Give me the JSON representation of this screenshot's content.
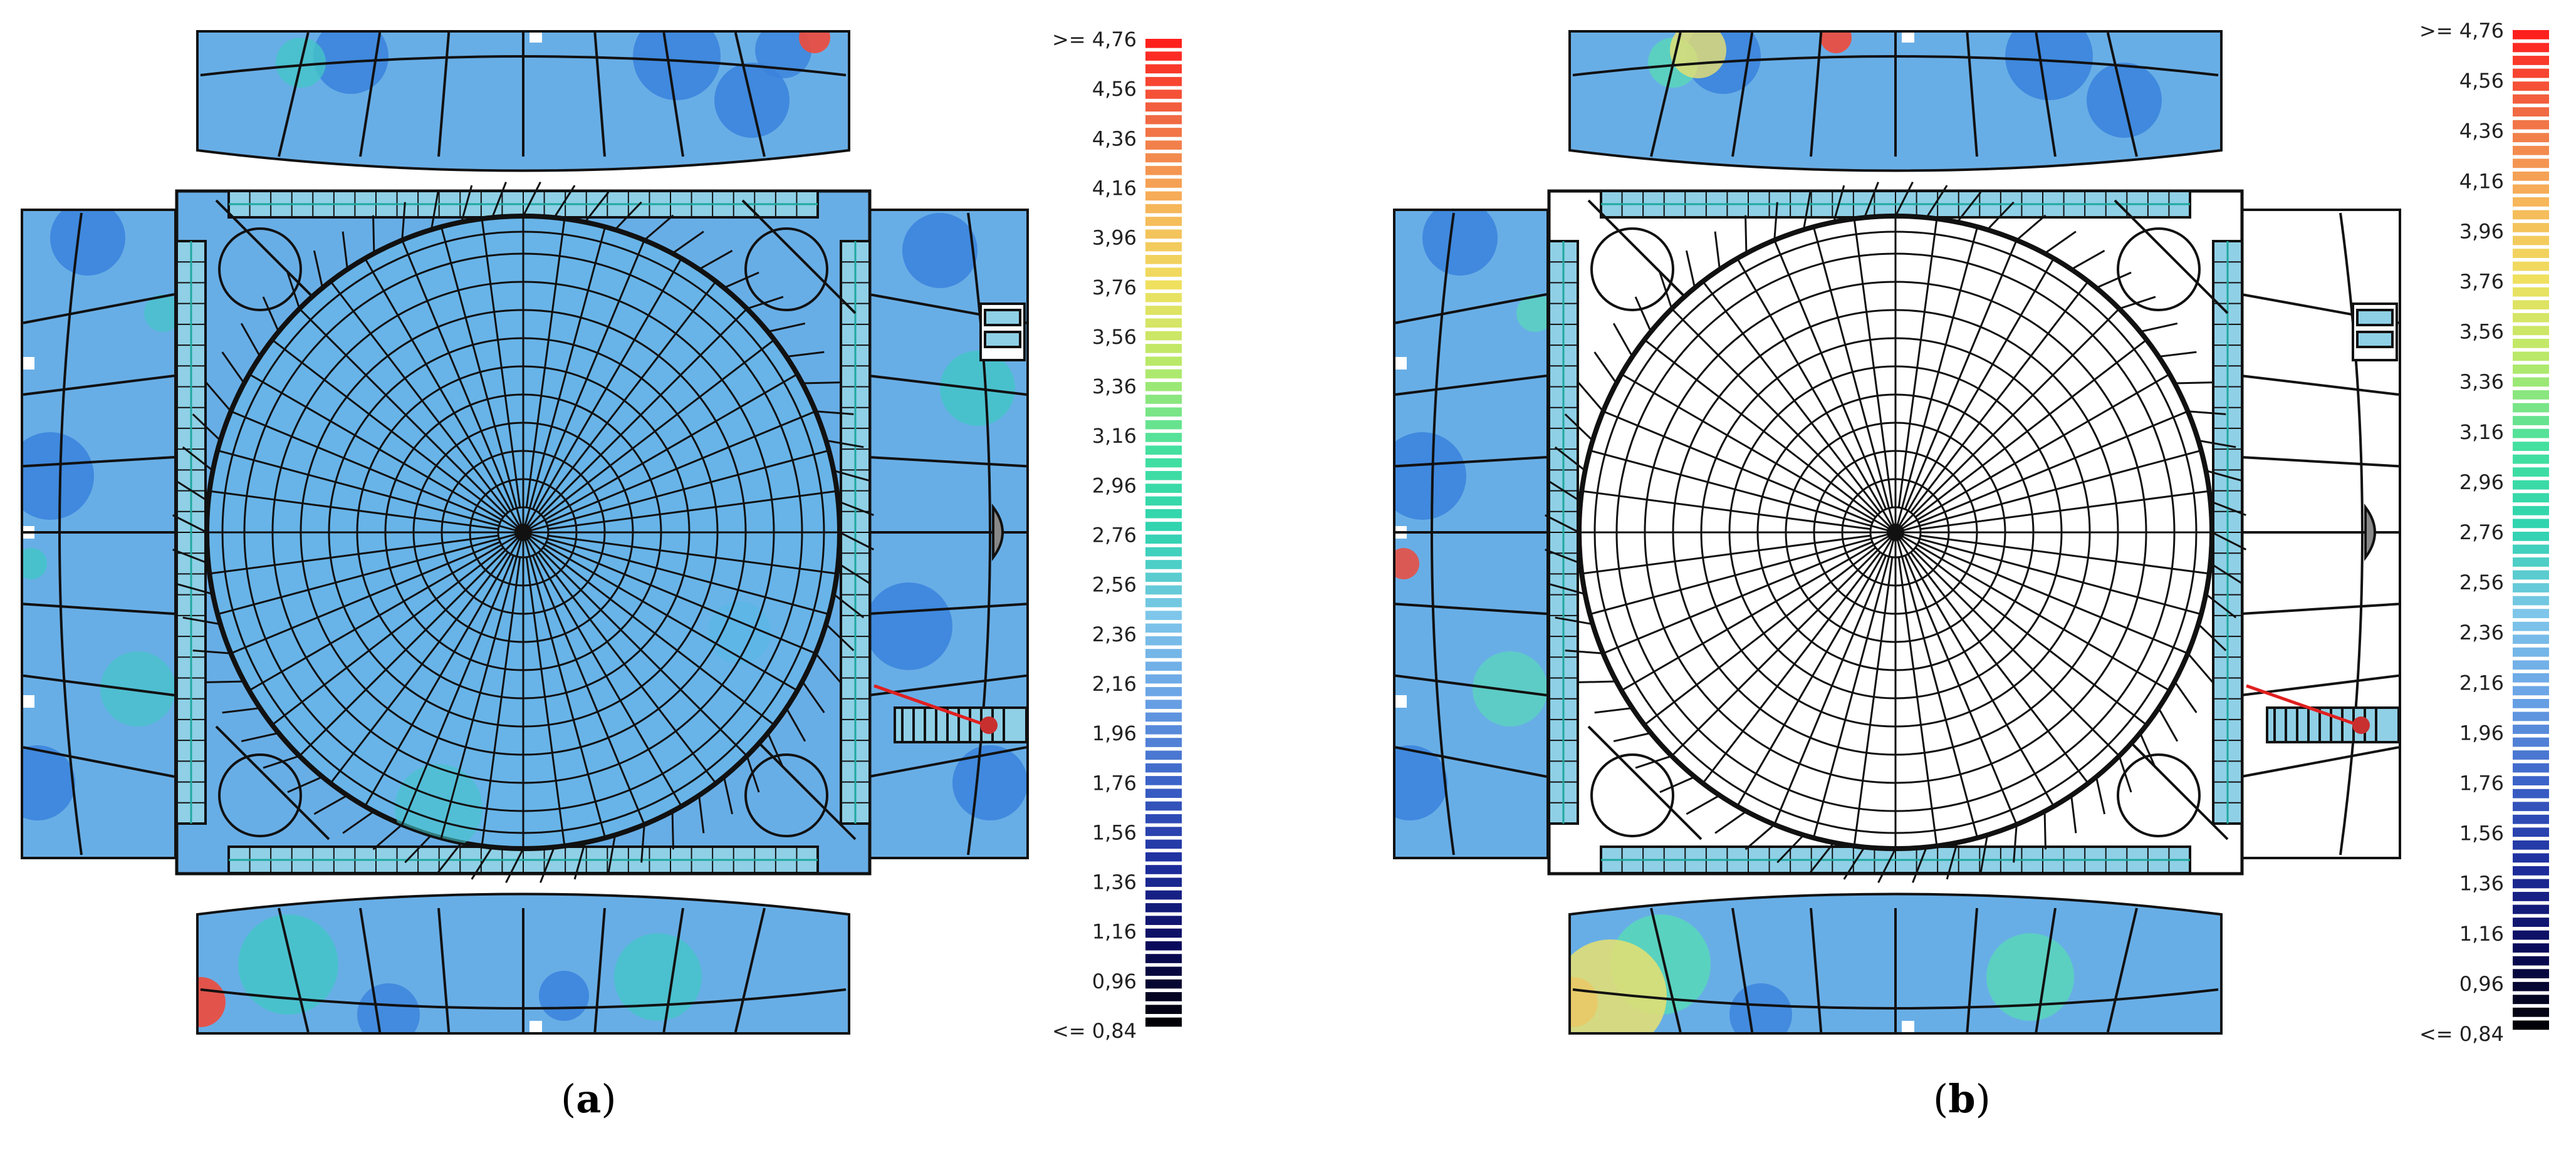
{
  "legend": {
    "top_label": ">= 4,76",
    "bottom_label": "<= 0,84",
    "ticks": [
      "4,56",
      "4,36",
      "4,16",
      "3,96",
      "3,76",
      "3,56",
      "3,36",
      "3,16",
      "2,96",
      "2,76",
      "2,56",
      "2,36",
      "2,16",
      "1,96",
      "1,76",
      "1,56",
      "1,36",
      "1,16",
      "0,96"
    ],
    "min": 0.84,
    "max": 4.76,
    "colors": [
      "#000000",
      "#0b0b5c",
      "#1e2f9e",
      "#3c63c8",
      "#6aa3e6",
      "#7ec6ea",
      "#2fd3b0",
      "#44e0a0",
      "#b6ea6a",
      "#f0e060",
      "#f7b25a",
      "#f06a44",
      "#ff1a1a"
    ]
  },
  "panels": [
    {
      "id": "a",
      "caption_letter": "a",
      "dome_filled": true,
      "right_wing_filled": true,
      "base_fill": "#68aee6",
      "hotspot_colors": [
        "#3a82dc",
        "#44c4c8",
        "#2fd3b0",
        "#f04a3a"
      ]
    },
    {
      "id": "b",
      "caption_letter": "b",
      "dome_filled": false,
      "right_wing_filled": false,
      "base_fill": "#68aee6",
      "hotspot_colors": [
        "#3a82dc",
        "#58d8b8",
        "#e8e070",
        "#f04a3a"
      ]
    }
  ]
}
